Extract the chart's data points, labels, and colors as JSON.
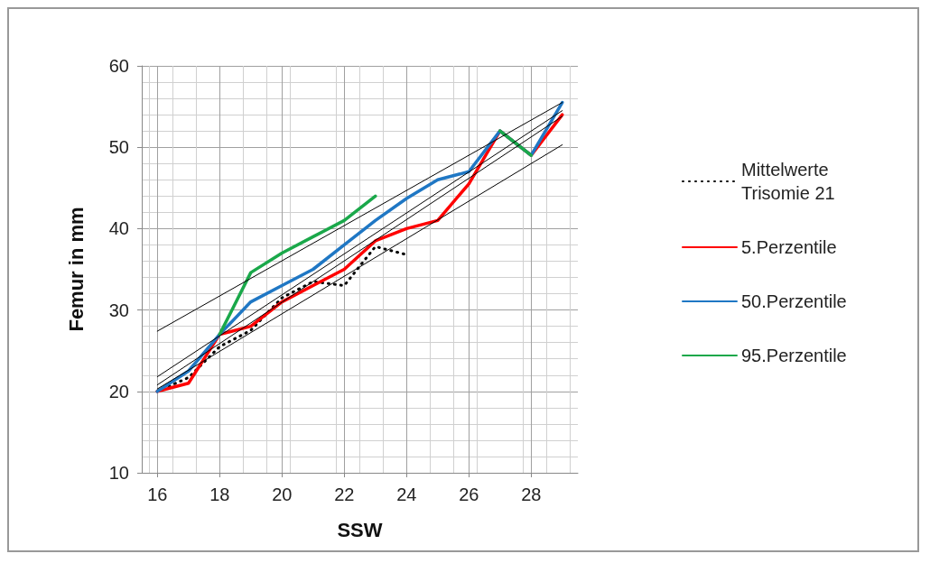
{
  "chart_data": {
    "type": "line",
    "xlabel": "SSW",
    "ylabel": "Femur in mm",
    "x": [
      16,
      17,
      18,
      19,
      20,
      21,
      22,
      23,
      24,
      25,
      26,
      27,
      28,
      29
    ],
    "xlim": [
      15.5,
      29.5
    ],
    "xticks": [
      16,
      18,
      20,
      22,
      24,
      26,
      28
    ],
    "ylim": [
      10,
      60
    ],
    "yticks": [
      10,
      20,
      30,
      40,
      50,
      60
    ],
    "grid": true,
    "legend": "right",
    "marker": "none",
    "series": [
      {
        "name": "Mittelwerte Trisomie 21",
        "color": "#000000",
        "line_style": "dotted",
        "values": [
          20,
          21.7,
          25.5,
          27.5,
          31.5,
          33.5,
          33,
          37.8,
          36.8,
          null,
          null,
          null,
          null,
          null
        ]
      },
      {
        "name": "5.Perzentile",
        "color": "#ff0000",
        "values": [
          20,
          21,
          27,
          28,
          31,
          33,
          35,
          38.5,
          40,
          41,
          45.5,
          52,
          49,
          54
        ]
      },
      {
        "name": "50.Perzentile",
        "color": "#1f77c4",
        "values": [
          20,
          22.5,
          27,
          31,
          33,
          35,
          38,
          41,
          43.7,
          46,
          47,
          52,
          49,
          55.5
        ]
      },
      {
        "name": "95.Perzentile",
        "color": "#1aa84a",
        "values": [
          null,
          null,
          27,
          34.6,
          37,
          39,
          41,
          44,
          null,
          null,
          null,
          52,
          49,
          null
        ]
      },
      {
        "type": "line",
        "color": "#000000",
        "values": [
          20.3,
          null,
          null,
          null,
          null,
          null,
          null,
          null,
          null,
          null,
          null,
          null,
          null,
          50.3
        ]
      },
      {
        "type": "line",
        "color": "#000000",
        "values": [
          20.8,
          null,
          null,
          null,
          null,
          null,
          null,
          null,
          null,
          null,
          null,
          null,
          null,
          53.8
        ]
      },
      {
        "type": "line",
        "color": "#000000",
        "values": [
          21.8,
          null,
          null,
          null,
          null,
          null,
          null,
          null,
          null,
          null,
          null,
          null,
          null,
          54.5
        ]
      },
      {
        "type": "line",
        "color": "#000000",
        "values": [
          27.4,
          null,
          null,
          null,
          null,
          null,
          null,
          null,
          null,
          null,
          null,
          null,
          null,
          55.5
        ]
      }
    ]
  }
}
